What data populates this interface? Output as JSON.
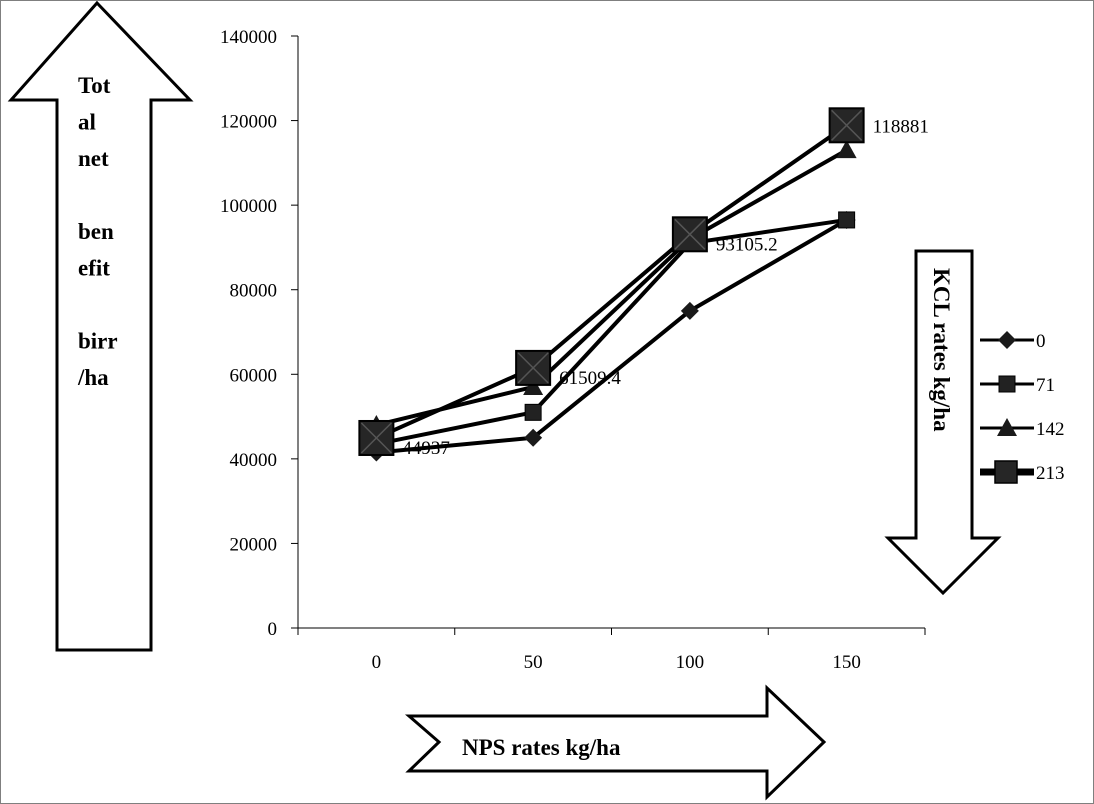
{
  "chart_data": {
    "type": "line",
    "x": [
      0,
      50,
      100,
      150
    ],
    "categories": [
      "0",
      "50",
      "100",
      "150"
    ],
    "ylim": [
      0,
      140000
    ],
    "yticks": [
      0,
      20000,
      40000,
      60000,
      80000,
      100000,
      120000,
      140000
    ],
    "ylabel_lines": [
      "Tot",
      "al",
      "net",
      "",
      "ben",
      "efit",
      "",
      "birr",
      "/ha"
    ],
    "xlabel": "NPS rates kg/ha",
    "legend_title": "KCL rates  kg/ha",
    "legend_position": "right",
    "grid": false,
    "series": [
      {
        "name": "0",
        "marker": "diamond",
        "values": [
          41500,
          45000,
          75000,
          96500
        ]
      },
      {
        "name": "71",
        "marker": "square",
        "values": [
          43500,
          51000,
          91000,
          96500
        ]
      },
      {
        "name": "142",
        "marker": "triangle",
        "values": [
          48000,
          57000,
          92000,
          113000
        ]
      },
      {
        "name": "213",
        "marker": "square-lg",
        "values": [
          44937,
          61509.4,
          93105.2,
          118881
        ]
      }
    ],
    "data_labels": [
      "44937",
      "61509.4",
      "93105.2",
      "118881"
    ]
  }
}
